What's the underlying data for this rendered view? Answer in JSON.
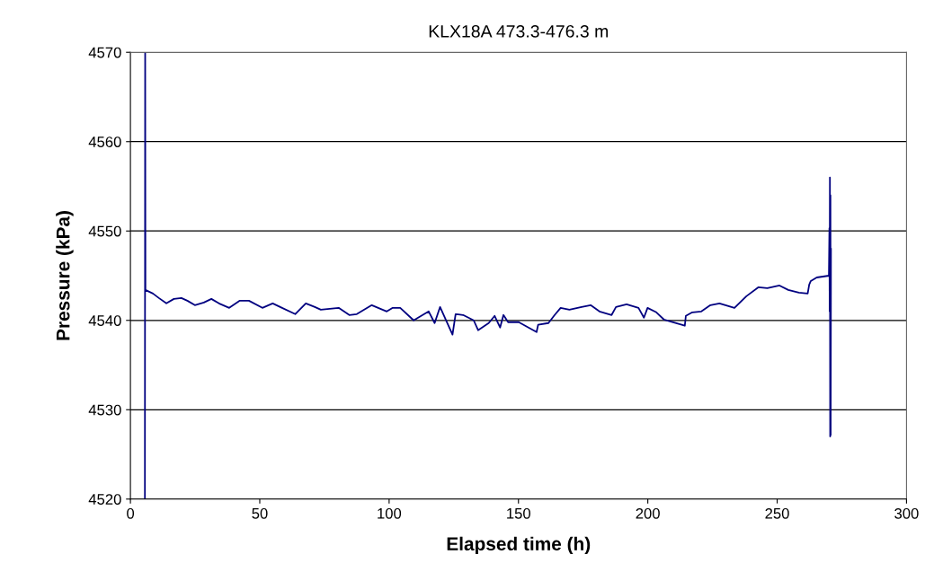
{
  "chart_data": {
    "type": "line",
    "title": "KLX18A 473.3-476.3 m",
    "xlabel": "Elapsed time (h)",
    "ylabel": "Pressure (kPa)",
    "xlim": [
      0,
      300
    ],
    "xticks": [
      0,
      50,
      100,
      150,
      200,
      250,
      300
    ],
    "ylim": [
      4520,
      4570
    ],
    "yticks": [
      4520,
      4530,
      4540,
      4550,
      4560,
      4570
    ],
    "grid": "y",
    "marker": "none",
    "line_style": "solid",
    "series": [
      {
        "color": "#000080",
        "x": [
          5.6,
          5.7,
          5.8,
          8.7,
          11.0,
          13.9,
          16.8,
          19.7,
          22.0,
          24.9,
          28.4,
          31.3,
          34.2,
          38.2,
          42.3,
          45.8,
          51.0,
          55.0,
          57.9,
          63.7,
          67.8,
          71.3,
          73.6,
          80.5,
          84.6,
          87.5,
          93.3,
          99.1,
          101.4,
          104.3,
          109.5,
          111.8,
          115.3,
          117.6,
          119.7,
          124.5,
          125.7,
          128.6,
          132.7,
          134.4,
          138.5,
          140.8,
          142.9,
          144.2,
          146.0,
          150.1,
          157.0,
          157.6,
          161.6,
          164.0,
          166.3,
          169.7,
          174.4,
          177.9,
          181.3,
          186.0,
          187.7,
          191.8,
          196.4,
          198.5,
          199.9,
          203.3,
          206.2,
          214.3,
          214.7,
          217.2,
          220.7,
          224.2,
          227.7,
          233.5,
          238.1,
          242.7,
          246.2,
          250.9,
          254.3,
          258.4,
          261.8,
          262.4,
          263.0,
          265.3,
          270.0,
          270.2,
          270.3,
          270.4,
          270.5,
          270.6,
          270.7,
          270.8
        ],
        "values": [
          4520,
          4570,
          4543.4,
          4543.0,
          4542.5,
          4541.9,
          4542.4,
          4542.5,
          4542.2,
          4541.7,
          4542.0,
          4542.4,
          4541.9,
          4541.4,
          4542.2,
          4542.2,
          4541.4,
          4541.9,
          4541.5,
          4540.7,
          4541.9,
          4541.5,
          4541.2,
          4541.4,
          4540.6,
          4540.7,
          4541.7,
          4541.0,
          4541.4,
          4541.4,
          4540.0,
          4540.4,
          4541.0,
          4539.7,
          4541.5,
          4538.4,
          4540.7,
          4540.6,
          4540.0,
          4538.9,
          4539.7,
          4540.5,
          4539.2,
          4540.6,
          4539.8,
          4539.8,
          4538.7,
          4539.5,
          4539.7,
          4540.6,
          4541.4,
          4541.2,
          4541.5,
          4541.7,
          4541.0,
          4540.6,
          4541.5,
          4541.8,
          4541.4,
          4540.3,
          4541.4,
          4540.9,
          4540.1,
          4539.4,
          4540.5,
          4540.9,
          4541.0,
          4541.7,
          4541.9,
          4541.4,
          4542.7,
          4543.7,
          4543.6,
          4543.9,
          4543.4,
          4543.1,
          4543.0,
          4544.0,
          4544.4,
          4544.8,
          4545.0,
          4550.3,
          4541.0,
          4556.0,
          4527.0,
          4554.0,
          4527.2,
          4548.0
        ]
      }
    ]
  }
}
